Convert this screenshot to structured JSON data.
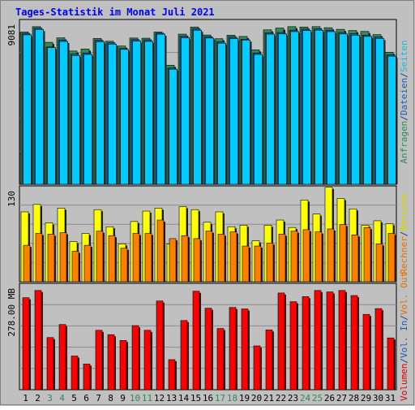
{
  "chart_data": {
    "type": "bar",
    "title": "Tages-Statistik im Monat Juli 2021",
    "categories": [
      "1",
      "2",
      "3",
      "4",
      "5",
      "6",
      "7",
      "8",
      "9",
      "10",
      "11",
      "12",
      "13",
      "14",
      "15",
      "16",
      "17",
      "18",
      "19",
      "20",
      "21",
      "22",
      "23",
      "24",
      "25",
      "26",
      "27",
      "28",
      "29",
      "30",
      "31"
    ],
    "weekend_days": [
      3,
      4,
      10,
      11,
      17,
      18,
      24,
      25
    ],
    "panels": [
      {
        "id": "hits",
        "max_label": "9081",
        "ylim": [
          0,
          9081
        ],
        "right_label": [
          {
            "text": "Anfragen",
            "color": "#2E8B57"
          },
          {
            "text": "/",
            "color": "#1E3A8A"
          },
          {
            "text": "Dateien",
            "color": "#1E5AAF"
          },
          {
            "text": "/",
            "color": "#1E3A8A"
          },
          {
            "text": "Seiten",
            "color": "#20B8D8"
          }
        ],
        "series": [
          {
            "name": "Anfragen",
            "color": "#2E8B57",
            "values": [
              8561,
              8861,
              7981,
              8231,
              7491,
              7601,
              8201,
              8041,
              7771,
              8221,
              8211,
              8561,
              6691,
              8441,
              8841,
              8391,
              8181,
              8381,
              8311,
              7561,
              8681,
              8781,
              8861,
              8841,
              8861,
              8801,
              8711,
              8641,
              8591,
              8411,
              7421
            ]
          },
          {
            "name": "Dateien",
            "color": "#1E5AAF",
            "values": [
              8481,
              8781,
              7721,
              8111,
              7321,
              7381,
              8101,
              7951,
              7631,
              8131,
              8121,
              8491,
              6531,
              8331,
              8741,
              8301,
              8011,
              8281,
              8151,
              7381,
              8521,
              8531,
              8661,
              8721,
              8741,
              8661,
              8531,
              8461,
              8381,
              8281,
              7281
            ]
          },
          {
            "name": "Seiten",
            "color": "#00CCFF",
            "values": [
              8401,
              8701,
              7681,
              8031,
              7241,
              7301,
              8011,
              7881,
              7581,
              8051,
              8031,
              8441,
              6471,
              8231,
              8661,
              8221,
              7931,
              8191,
              8111,
              7301,
              8441,
              8451,
              8581,
              8641,
              8661,
              8581,
              8451,
              8381,
              8311,
              8201,
              7201
            ]
          }
        ]
      },
      {
        "id": "visits",
        "max_label": "130",
        "ylim": [
          0,
          130
        ],
        "right_label": [
          {
            "text": "Rechner",
            "color": "#E07000"
          },
          {
            "text": "/",
            "color": "#1E3A8A"
          },
          {
            "text": "Besuche",
            "color": "#D8D800"
          }
        ],
        "series": [
          {
            "name": "Besuche",
            "color": "#FFFF00",
            "values": [
              94,
              104,
              79,
              99,
              54,
              65,
              97,
              74,
              51,
              81,
              95,
              99,
              51,
              101,
              97,
              80,
              94,
              74,
              76,
              55,
              76,
              83,
              73,
              110,
              91,
              127,
              112,
              98,
              76,
              82,
              78
            ]
          },
          {
            "name": "Rechner",
            "color": "#FF8000",
            "values": [
              49,
              65,
              64,
              66,
              41,
              49,
              68,
              62,
              45,
              65,
              65,
              83,
              58,
              62,
              58,
              68,
              64,
              67,
              48,
              48,
              52,
              64,
              68,
              70,
              67,
              71,
              77,
              63,
              73,
              51,
              65
            ]
          }
        ]
      },
      {
        "id": "volume",
        "max_label": "278.00 MB",
        "ylim": [
          0,
          278
        ],
        "right_label": [
          {
            "text": "Volumen",
            "color": "#DD0000"
          },
          {
            "text": "/",
            "color": "#1E3A8A"
          },
          {
            "text": "Vol. In",
            "color": "#1E5AAF"
          },
          {
            "text": "/",
            "color": "#1E3A8A"
          },
          {
            "text": "Vol. Out",
            "color": "#E07000"
          }
        ],
        "series": [
          {
            "name": "Volumen",
            "color": "#FF0000",
            "values": [
              254,
              274,
              144,
              180,
              93,
              71,
              164,
              152,
              136,
              177,
              164,
              245,
              83,
              191,
              272,
              225,
              169,
              227,
              223,
              121,
              165,
              267,
              243,
              257,
              274,
              270,
              274,
              260,
              208,
              224,
              143
            ]
          }
        ]
      }
    ],
    "grid": true
  }
}
